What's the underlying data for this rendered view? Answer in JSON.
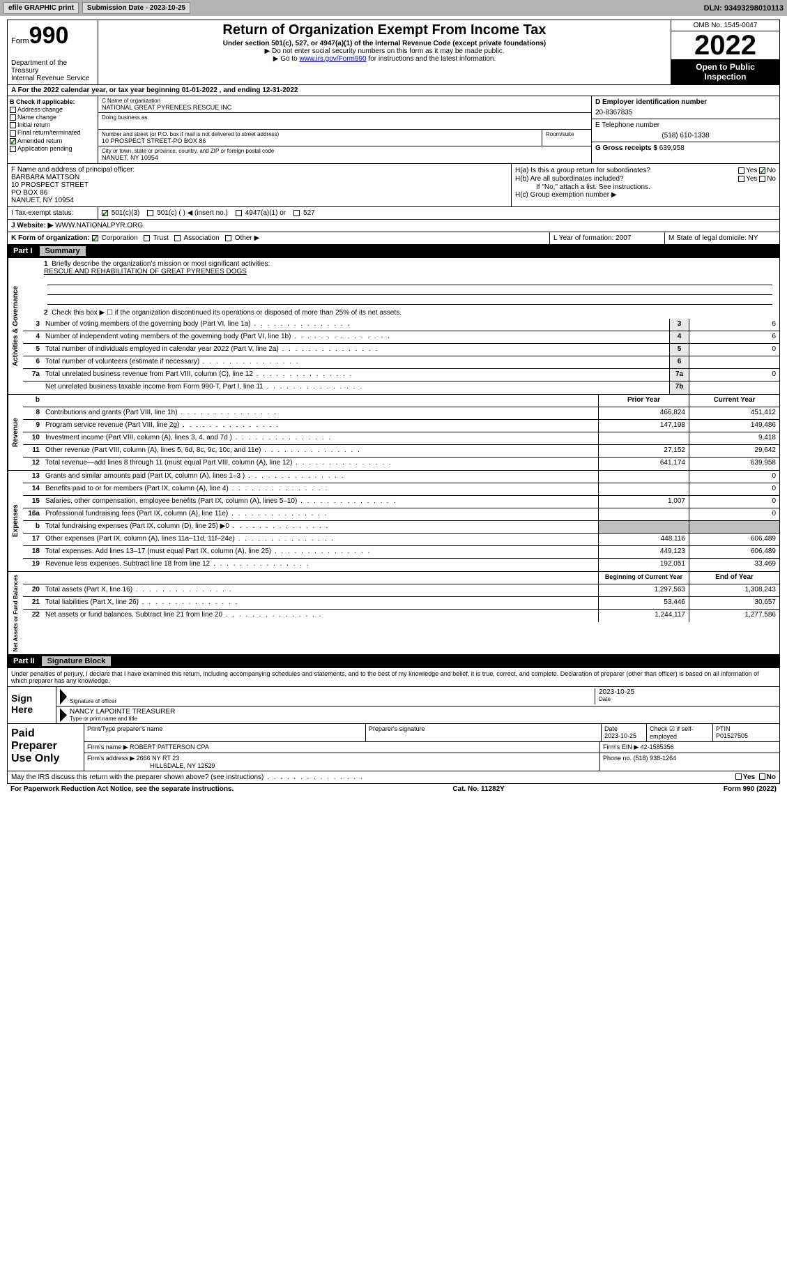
{
  "toolbar": {
    "efile": "efile GRAPHIC print",
    "submission_label": "Submission Date - 2023-10-25",
    "dln_label": "DLN: 93493298010113"
  },
  "header": {
    "form_label": "Form",
    "form_number": "990",
    "dept": "Department of the Treasury\nInternal Revenue Service",
    "title": "Return of Organization Exempt From Income Tax",
    "subtitle1": "Under section 501(c), 527, or 4947(a)(1) of the Internal Revenue Code (except private foundations)",
    "subtitle2_prefix": "▶ Do not enter social security numbers on this form as it may be made public.",
    "subtitle3_prefix": "▶ Go to ",
    "subtitle3_link": "www.irs.gov/Form990",
    "subtitle3_suffix": " for instructions and the latest information.",
    "omb": "OMB No. 1545-0047",
    "year": "2022",
    "open": "Open to Public Inspection"
  },
  "row_a": "A  For the 2022 calendar year, or tax year beginning 01-01-2022    , and ending 12-31-2022",
  "col_b": {
    "title": "B Check if applicable:",
    "items": [
      "Address change",
      "Name change",
      "Initial return",
      "Final return/terminated",
      "Amended return",
      "Application pending"
    ],
    "checked_idx": 4
  },
  "col_c": {
    "name_lbl": "C Name of organization",
    "name": "NATIONAL GREAT PYRENEES RESCUE INC",
    "dba_lbl": "Doing business as",
    "addr_lbl": "Number and street (or P.O. box if mail is not delivered to street address)",
    "room_lbl": "Room/suite",
    "addr": "10 PROSPECT STREET-PO BOX 86",
    "city_lbl": "City or town, state or province, country, and ZIP or foreign postal code",
    "city": "NANUET, NY  10954"
  },
  "col_d": {
    "ein_lbl": "D Employer identification number",
    "ein": "20-8367835",
    "tel_lbl": "E Telephone number",
    "tel": "(518) 610-1338",
    "gross_lbl": "G Gross receipts $ ",
    "gross": "639,958"
  },
  "section_f": {
    "lbl": "F  Name and address of principal officer:",
    "name": "BARBARA MATTSON",
    "addr1": "10 PROSPECT STREET",
    "addr2": "PO BOX 86",
    "addr3": "NANUET, NY  10954"
  },
  "section_h": {
    "ha": "H(a)  Is this a group return for subordinates?",
    "hb": "H(b)  Are all subordinates included?",
    "hnote": "If \"No,\" attach a list. See instructions.",
    "hc": "H(c)  Group exemption number ▶",
    "yes": "Yes",
    "no": "No"
  },
  "row_i": {
    "lbl": "I    Tax-exempt status:",
    "opts": [
      "501(c)(3)",
      "501(c) (  ) ◀ (insert no.)",
      "4947(a)(1) or",
      "527"
    ]
  },
  "row_j": {
    "lbl": "J   Website: ▶ ",
    "val": "WWW.NATIONALPYR.ORG"
  },
  "row_k": {
    "k": "K Form of organization:",
    "opts": [
      "Corporation",
      "Trust",
      "Association",
      "Other ▶"
    ],
    "l": "L Year of formation: 2007",
    "m": "M State of legal domicile: NY"
  },
  "part1": {
    "num": "Part I",
    "title": "Summary",
    "q1": "Briefly describe the organization's mission or most significant activities:",
    "mission": "RESCUE AND REHABILITATION OF GREAT PYRENEES DOGS",
    "q2": "Check this box ▶ ☐  if the organization discontinued its operations or disposed of more than 25% of its net assets.",
    "gov_lines": [
      {
        "n": "3",
        "t": "Number of voting members of the governing body (Part VI, line 1a)",
        "b": "3",
        "v": "6"
      },
      {
        "n": "4",
        "t": "Number of independent voting members of the governing body (Part VI, line 1b)",
        "b": "4",
        "v": "6"
      },
      {
        "n": "5",
        "t": "Total number of individuals employed in calendar year 2022 (Part V, line 2a)",
        "b": "5",
        "v": "0"
      },
      {
        "n": "6",
        "t": "Total number of volunteers (estimate if necessary)",
        "b": "6",
        "v": ""
      },
      {
        "n": "7a",
        "t": "Total unrelated business revenue from Part VIII, column (C), line 12",
        "b": "7a",
        "v": "0"
      },
      {
        "n": "",
        "t": "Net unrelated business taxable income from Form 990-T, Part I, line 11",
        "b": "7b",
        "v": ""
      }
    ],
    "prior_hdr": "Prior Year",
    "curr_hdr": "Current Year",
    "rev_lines": [
      {
        "n": "8",
        "t": "Contributions and grants (Part VIII, line 1h)",
        "p": "466,824",
        "c": "451,412"
      },
      {
        "n": "9",
        "t": "Program service revenue (Part VIII, line 2g)",
        "p": "147,198",
        "c": "149,486"
      },
      {
        "n": "10",
        "t": "Investment income (Part VIII, column (A), lines 3, 4, and 7d )",
        "p": "",
        "c": "9,418"
      },
      {
        "n": "11",
        "t": "Other revenue (Part VIII, column (A), lines 5, 6d, 8c, 9c, 10c, and 11e)",
        "p": "27,152",
        "c": "29,642"
      },
      {
        "n": "12",
        "t": "Total revenue—add lines 8 through 11 (must equal Part VIII, column (A), line 12)",
        "p": "641,174",
        "c": "639,958"
      }
    ],
    "exp_lines": [
      {
        "n": "13",
        "t": "Grants and similar amounts paid (Part IX, column (A), lines 1–3 )",
        "p": "",
        "c": "0"
      },
      {
        "n": "14",
        "t": "Benefits paid to or for members (Part IX, column (A), line 4)",
        "p": "",
        "c": "0"
      },
      {
        "n": "15",
        "t": "Salaries, other compensation, employee benefits (Part IX, column (A), lines 5–10)",
        "p": "1,007",
        "c": "0"
      },
      {
        "n": "16a",
        "t": "Professional fundraising fees (Part IX, column (A), line 11e)",
        "p": "",
        "c": "0"
      },
      {
        "n": "b",
        "t": "Total fundraising expenses (Part IX, column (D), line 25) ▶0",
        "p": "SHADE",
        "c": "SHADE"
      },
      {
        "n": "17",
        "t": "Other expenses (Part IX, column (A), lines 11a–11d, 11f–24e)",
        "p": "448,116",
        "c": "606,489"
      },
      {
        "n": "18",
        "t": "Total expenses. Add lines 13–17 (must equal Part IX, column (A), line 25)",
        "p": "449,123",
        "c": "606,489"
      },
      {
        "n": "19",
        "t": "Revenue less expenses. Subtract line 18 from line 12",
        "p": "192,051",
        "c": "33,469"
      }
    ],
    "begin_hdr": "Beginning of Current Year",
    "end_hdr": "End of Year",
    "net_lines": [
      {
        "n": "20",
        "t": "Total assets (Part X, line 16)",
        "p": "1,297,563",
        "c": "1,308,243"
      },
      {
        "n": "21",
        "t": "Total liabilities (Part X, line 26)",
        "p": "53,446",
        "c": "30,657"
      },
      {
        "n": "22",
        "t": "Net assets or fund balances. Subtract line 21 from line 20",
        "p": "1,244,117",
        "c": "1,277,586"
      }
    ],
    "side_labels": [
      "Activities & Governance",
      "Revenue",
      "Expenses",
      "Net Assets or Fund Balances"
    ]
  },
  "part2": {
    "num": "Part II",
    "title": "Signature Block",
    "penalty": "Under penalties of perjury, I declare that I have examined this return, including accompanying schedules and statements, and to the best of my knowledge and belief, it is true, correct, and complete. Declaration of preparer (other than officer) is based on all information of which preparer has any knowledge.",
    "sign_here": "Sign Here",
    "sig_officer": "Signature of officer",
    "sig_date": "2023-10-25",
    "sig_date_lbl": "Date",
    "sig_name": "NANCY LAPOINTE  TREASURER",
    "sig_name_lbl": "Type or print name and title",
    "paid": "Paid Preparer Use Only",
    "prep_name_lbl": "Print/Type preparer's name",
    "prep_sig_lbl": "Preparer's signature",
    "prep_date_lbl": "Date",
    "prep_date": "2023-10-25",
    "prep_check_lbl": "Check ☑ if self-employed",
    "ptin_lbl": "PTIN",
    "ptin": "P01527505",
    "firm_name_lbl": "Firm's name    ▶ ",
    "firm_name": "ROBERT PATTERSON CPA",
    "firm_ein_lbl": "Firm's EIN ▶ ",
    "firm_ein": "42-1585356",
    "firm_addr_lbl": "Firm's address ▶ ",
    "firm_addr": "2666 NY RT 23",
    "firm_city": "HILLSDALE, NY  12529",
    "phone_lbl": "Phone no. ",
    "phone": "(518) 938-1264"
  },
  "may": "May the IRS discuss this return with the preparer shown above? (see instructions)",
  "footer": {
    "l": "For Paperwork Reduction Act Notice, see the separate instructions.",
    "c": "Cat. No. 11282Y",
    "r": "Form 990 (2022)"
  }
}
